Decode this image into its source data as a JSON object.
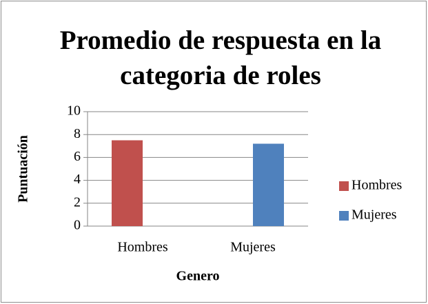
{
  "chart_data": {
    "type": "bar",
    "title": "Promedio de respuesta en la categoria de roles",
    "x_label": "Genero",
    "y_label": "Puntuación",
    "categories": [
      "Hombres",
      "Mujeres"
    ],
    "series": [
      {
        "name": "Hombres",
        "color": "#c0504d",
        "values": [
          7.5,
          null
        ]
      },
      {
        "name": "Mujeres",
        "color": "#4f81bd",
        "values": [
          null,
          7.2
        ]
      }
    ],
    "ylim": [
      0,
      10
    ],
    "yticks": [
      0,
      2,
      4,
      6,
      8,
      10
    ],
    "grid": true,
    "legend": "right"
  }
}
